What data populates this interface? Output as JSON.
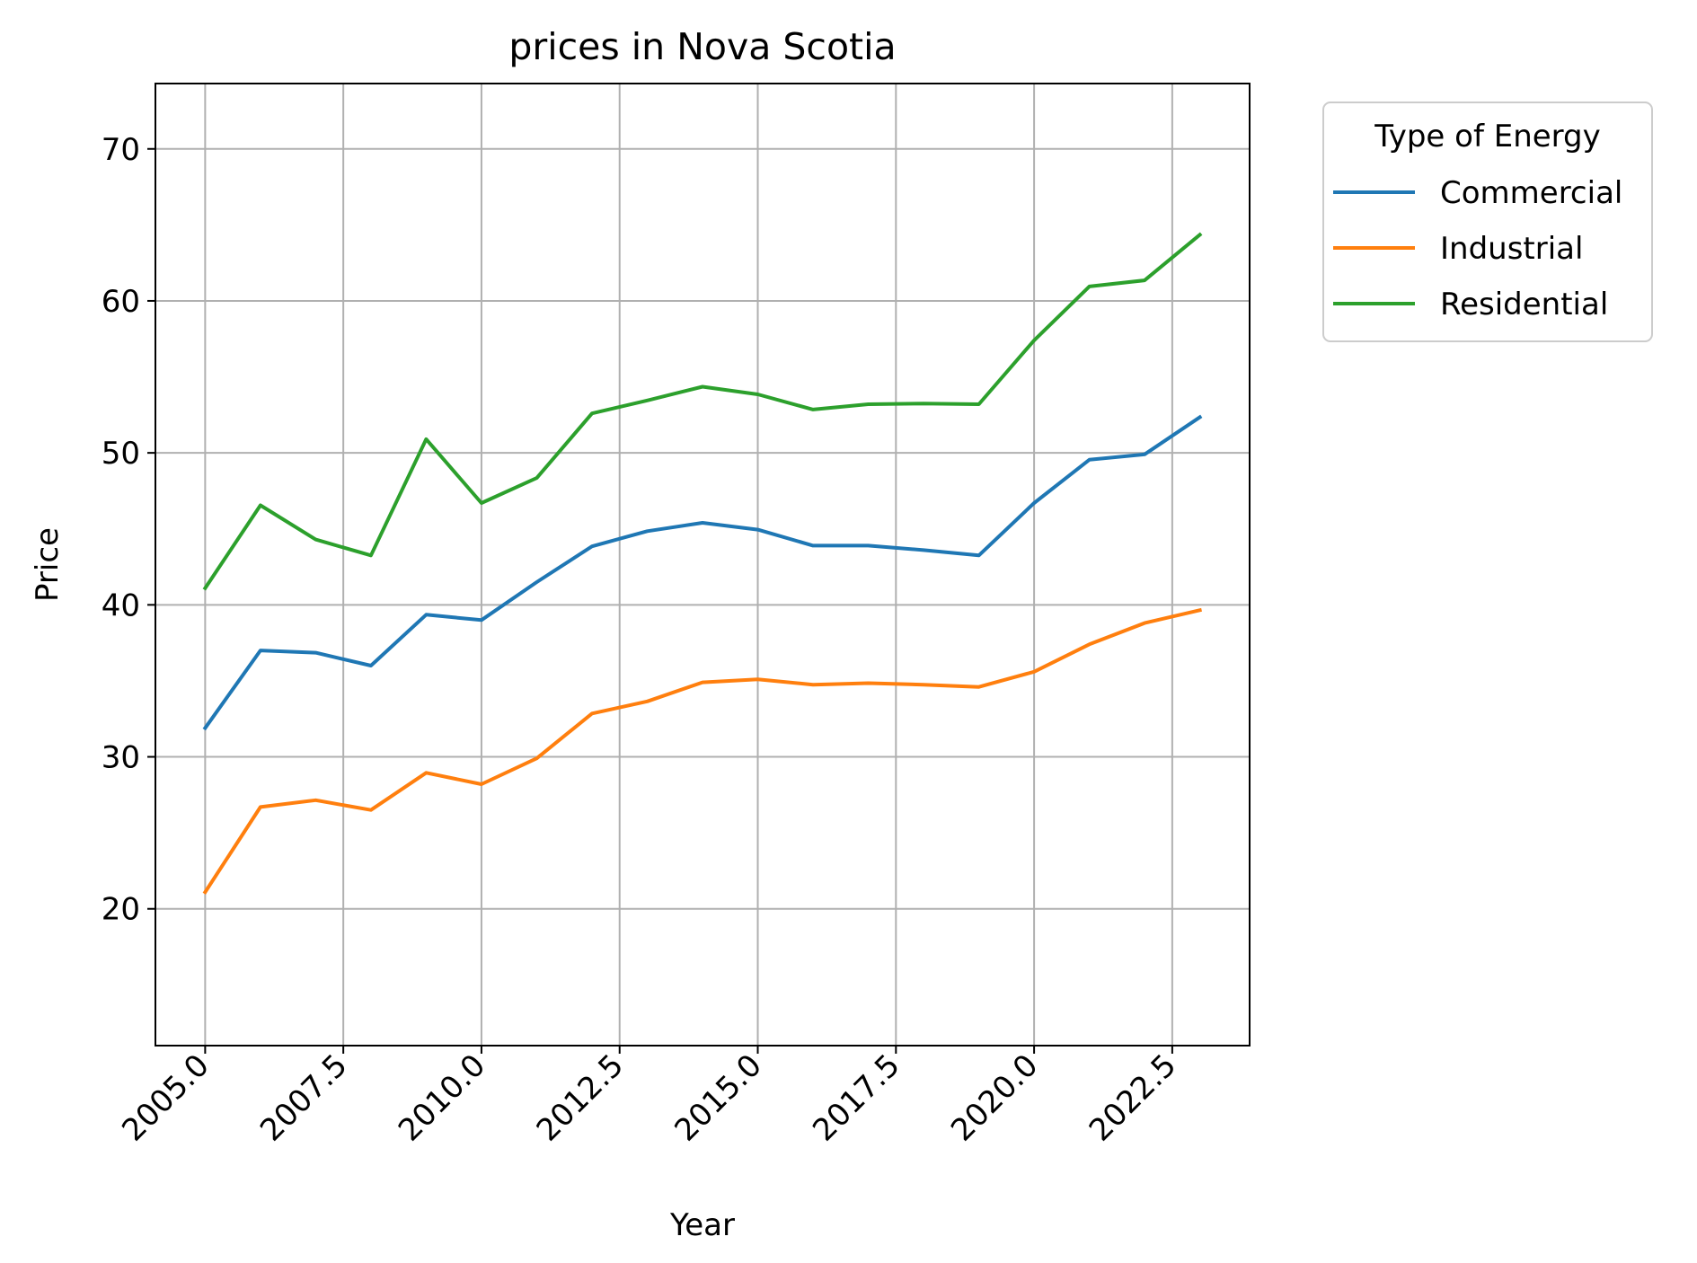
{
  "chart_data": {
    "type": "line",
    "title": "prices in Nova Scotia",
    "xlabel": "Year",
    "ylabel": "Price",
    "xlim": [
      2004.1,
      2023.9
    ],
    "ylim": [
      11.0,
      74.3
    ],
    "x_ticks": [
      "2005.0",
      "2007.5",
      "2010.0",
      "2012.5",
      "2015.0",
      "2017.5",
      "2020.0",
      "2022.5"
    ],
    "y_ticks": [
      "20",
      "30",
      "40",
      "50",
      "60",
      "70"
    ],
    "grid": true,
    "legend": {
      "title": "Type of Energy",
      "placement": "outside-right-top"
    },
    "x": [
      2005,
      2006,
      2007,
      2008,
      2009,
      2010,
      2011,
      2012,
      2013,
      2014,
      2015,
      2016,
      2017,
      2018,
      2019,
      2020,
      2021,
      2022,
      2023
    ],
    "series": [
      {
        "name": "Commercial",
        "color": "#1f77b4",
        "values": [
          31.9,
          37.0,
          36.85,
          36.0,
          39.35,
          39.0,
          41.5,
          43.85,
          44.85,
          45.4,
          44.95,
          43.9,
          43.9,
          43.6,
          43.25,
          46.7,
          49.55,
          49.9,
          52.35
        ]
      },
      {
        "name": "Industrial",
        "color": "#ff7f0e",
        "values": [
          21.1,
          26.7,
          27.15,
          26.5,
          28.95,
          28.2,
          29.9,
          32.85,
          33.65,
          34.9,
          35.1,
          34.75,
          34.85,
          34.75,
          34.6,
          35.6,
          37.4,
          38.8,
          39.65
        ]
      },
      {
        "name": "Residential",
        "color": "#2ca02c",
        "values": [
          41.1,
          46.55,
          44.3,
          43.25,
          50.9,
          46.7,
          48.35,
          52.6,
          53.45,
          54.35,
          53.85,
          52.85,
          53.2,
          53.25,
          53.2,
          57.4,
          60.95,
          61.35,
          64.35
        ]
      }
    ]
  }
}
